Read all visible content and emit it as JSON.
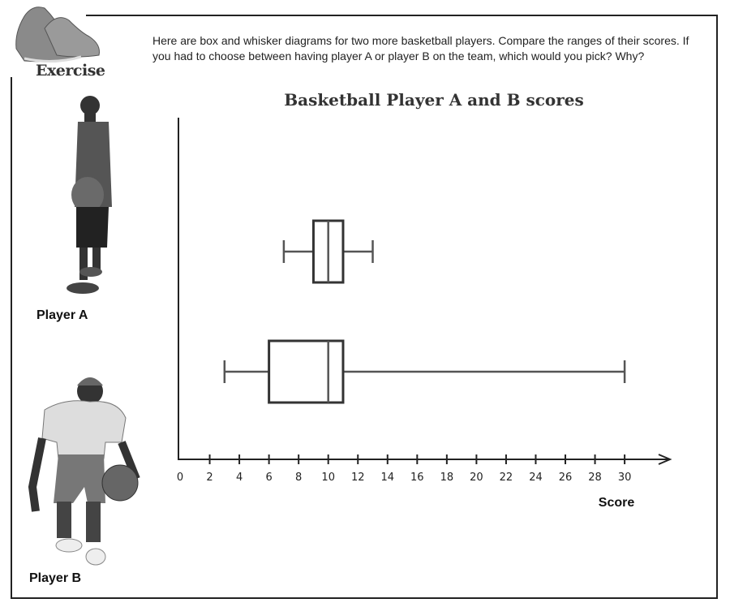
{
  "header": {
    "badge": "Exercise",
    "badge_icon": "sneakers-icon",
    "intro": "Here are box and whisker diagrams for two more basketball players. Compare the ranges of their scores. If you had to choose between having player A or player B on the team, which would you pick? Why?"
  },
  "players": [
    {
      "label": "Player A"
    },
    {
      "label": "Player B"
    }
  ],
  "chart_data": {
    "type": "boxplot",
    "title": "Basketball Player A and B scores",
    "xlabel": "Score",
    "ylabel": "",
    "xlim": [
      0,
      32
    ],
    "xticks": [
      0,
      2,
      4,
      6,
      8,
      10,
      12,
      14,
      16,
      18,
      20,
      22,
      24,
      26,
      28,
      30
    ],
    "grid": false,
    "series": [
      {
        "name": "Player A",
        "min": 7,
        "q1": 9,
        "median": 10,
        "q3": 11,
        "max": 13
      },
      {
        "name": "Player B",
        "min": 3,
        "q1": 6,
        "median": 10,
        "q3": 11,
        "max": 30
      }
    ]
  }
}
